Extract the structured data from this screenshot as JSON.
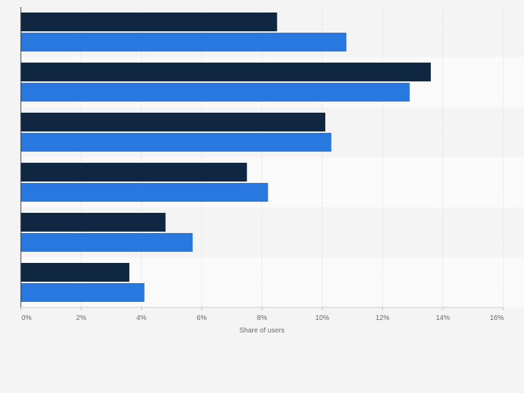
{
  "colors": {
    "background": "#f4f4f4",
    "band_alt": "#fafafa",
    "grid": "#dcdcdc",
    "series_1": "#0f2741",
    "series_2": "#2878e0",
    "axis_text": "#666666"
  },
  "chart_data": {
    "type": "bar",
    "orientation": "horizontal",
    "title": "",
    "xlabel": "Share of users",
    "ylabel": "",
    "xlim": [
      0,
      16
    ],
    "ticks": [
      0,
      2,
      4,
      6,
      8,
      10,
      12,
      14,
      16
    ],
    "tick_labels": [
      "0%",
      "2%",
      "4%",
      "6%",
      "8%",
      "10%",
      "12%",
      "14%",
      "16%"
    ],
    "grid": true,
    "legend": "none",
    "categories": [
      "",
      "",
      "",
      "",
      "",
      ""
    ],
    "series": [
      {
        "values": [
          8.5,
          13.6,
          10.1,
          7.5,
          4.8,
          3.6
        ]
      },
      {
        "values": [
          10.8,
          12.9,
          10.3,
          8.2,
          5.7,
          4.1
        ]
      }
    ]
  }
}
